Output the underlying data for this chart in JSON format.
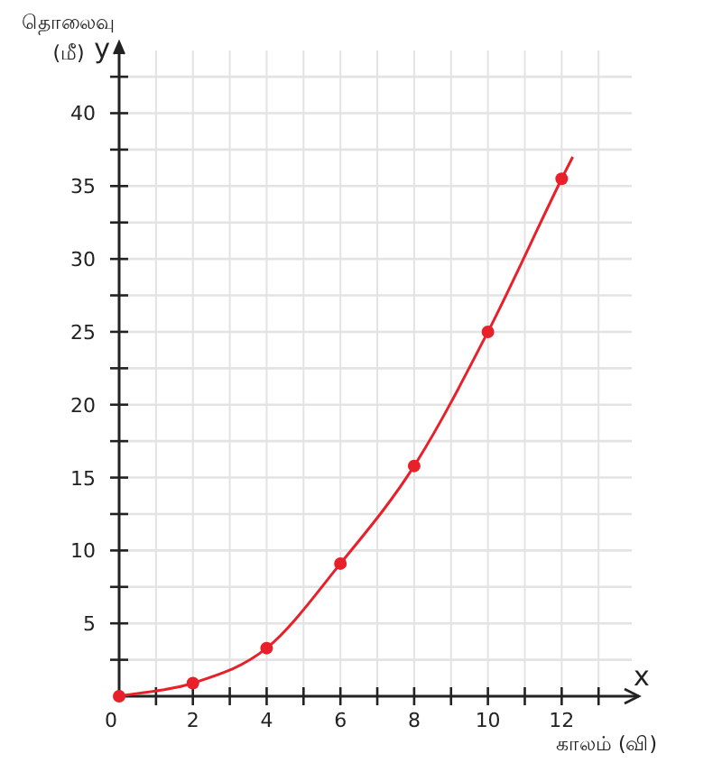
{
  "chart_data": {
    "type": "line",
    "xlabel": "காலம் (வி)",
    "ylabel": "தொலைவு (மீ)",
    "annotations": [
      "x",
      "y"
    ],
    "series": [
      {
        "color": "#e8202a",
        "marker": "none",
        "x": [
          0,
          2,
          4,
          6,
          8,
          10,
          12,
          12.3
        ],
        "values": [
          0,
          0.9,
          3.3,
          9.1,
          15.8,
          25,
          35.5,
          37
        ]
      },
      {
        "type": "scatter",
        "color": "#e8202a",
        "x": [
          0,
          2,
          4,
          6,
          8,
          10,
          12
        ],
        "values": [
          0,
          0.9,
          3.3,
          9.1,
          15.8,
          25,
          35.5
        ]
      }
    ],
    "xlim": [
      0,
      13.9
    ],
    "ylim": [
      0,
      44.3
    ],
    "xticks": [
      0,
      {
        "value": 1,
        "label": null
      },
      2,
      {
        "value": 3,
        "label": null
      },
      4,
      {
        "value": 5,
        "label": null
      },
      6,
      {
        "value": 7,
        "label": null
      },
      8,
      {
        "value": 9,
        "label": null
      },
      10,
      {
        "value": 11,
        "label": null
      },
      12,
      {
        "value": 13,
        "label": null
      }
    ],
    "yticks": [
      {
        "value": 2.5,
        "label": null
      },
      5,
      {
        "value": 7.5,
        "label": null
      },
      10,
      {
        "value": 12.5,
        "label": null
      },
      15,
      {
        "value": 17.5,
        "label": null
      },
      20,
      {
        "value": 22.5,
        "label": null
      },
      25,
      {
        "value": 27.5,
        "label": null
      },
      30,
      {
        "value": 32.5,
        "label": null
      },
      35,
      {
        "value": 37.5,
        "label": null
      },
      40,
      {
        "value": 42.5,
        "label": null
      }
    ],
    "grid": true,
    "marker": "circle",
    "line_style": "solid"
  }
}
